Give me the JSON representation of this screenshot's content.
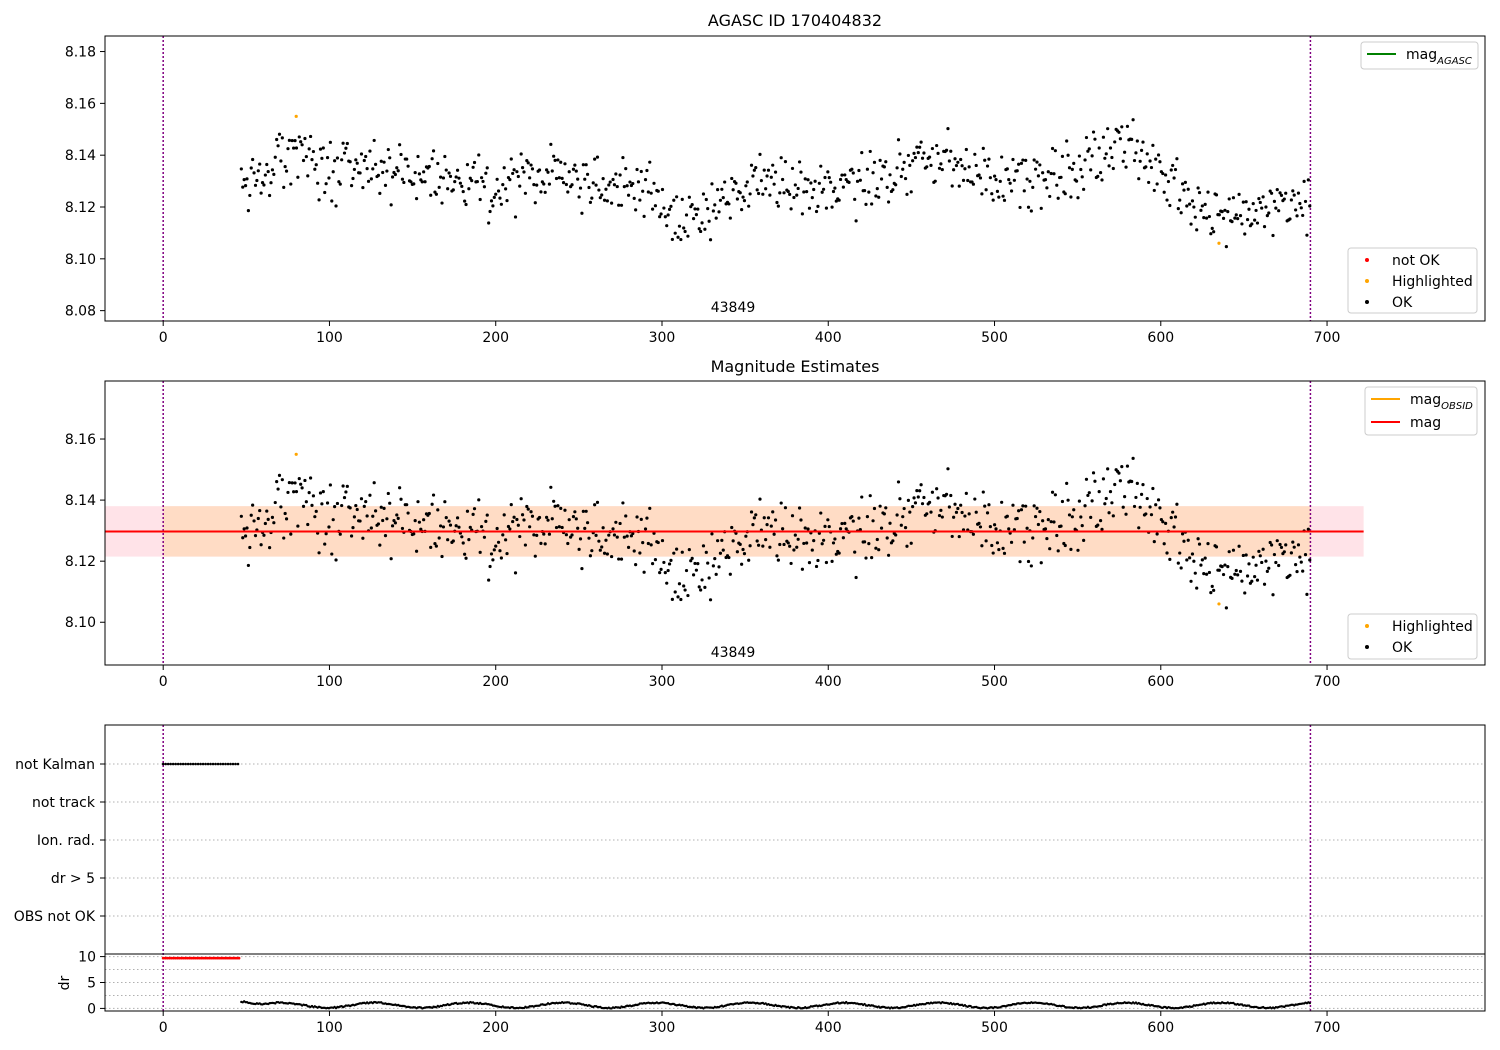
{
  "colors": {
    "ok": "#000000",
    "highlighted": "#ffa500",
    "not_ok": "#ff0000",
    "mag_agasc": "#008000",
    "mag_obsid": "#ffa500",
    "mag": "#ff0000",
    "obs_band": "#ffdab9",
    "total_band": "#ffc0cb",
    "obs_boundary": "#800080",
    "grid": "#b0b0b0"
  },
  "chart_data": [
    {
      "type": "scatter",
      "title": "AGASC ID 170404832",
      "xlim": [
        -35,
        795
      ],
      "ylim": [
        8.076,
        8.186
      ],
      "xticks": [
        "0",
        "100",
        "200",
        "300",
        "400",
        "500",
        "600",
        "700"
      ],
      "yticks": [
        "8.08",
        "8.10",
        "8.12",
        "8.14",
        "8.16",
        "8.18"
      ],
      "obsid_label": "43849",
      "obs_boundaries": [
        0,
        690
      ],
      "ok_series": {
        "x_start": 47,
        "x_end": 690,
        "mean": 8.1296,
        "profile": [
          [
            47,
            8.126
          ],
          [
            80,
            8.14
          ],
          [
            100,
            8.134
          ],
          [
            150,
            8.133
          ],
          [
            200,
            8.128
          ],
          [
            230,
            8.133
          ],
          [
            260,
            8.128
          ],
          [
            290,
            8.127
          ],
          [
            310,
            8.114
          ],
          [
            330,
            8.12
          ],
          [
            360,
            8.131
          ],
          [
            390,
            8.124
          ],
          [
            420,
            8.13
          ],
          [
            460,
            8.139
          ],
          [
            490,
            8.133
          ],
          [
            510,
            8.13
          ],
          [
            540,
            8.134
          ],
          [
            570,
            8.142
          ],
          [
            590,
            8.141
          ],
          [
            610,
            8.125
          ],
          [
            630,
            8.116
          ],
          [
            650,
            8.116
          ],
          [
            670,
            8.122
          ],
          [
            690,
            8.12
          ]
        ]
      },
      "highlighted_points": [
        {
          "x": 80,
          "y": 8.155
        },
        {
          "x": 635,
          "y": 8.106
        }
      ],
      "not_ok_points": [],
      "legend_lines": [
        {
          "label": "mag",
          "sub": "AGASC",
          "color": "#008000"
        }
      ],
      "legend_markers": [
        {
          "label": "not OK",
          "color": "#ff0000"
        },
        {
          "label": "Highlighted",
          "color": "#ffa500"
        },
        {
          "label": "OK",
          "color": "#000000"
        }
      ]
    },
    {
      "type": "scatter",
      "title": "Magnitude Estimates",
      "xlim": [
        -35,
        795
      ],
      "ylim": [
        8.086,
        8.179
      ],
      "xticks": [
        "0",
        "100",
        "200",
        "300",
        "400",
        "500",
        "600",
        "700"
      ],
      "yticks": [
        "8.10",
        "8.12",
        "8.14",
        "8.16"
      ],
      "obsid_label": "43849",
      "obs_boundaries": [
        0,
        690
      ],
      "mag": 8.1297,
      "mag_obsid": 8.1297,
      "band_low": 8.1215,
      "band_high": 8.138,
      "band_x_end": 722,
      "legend_lines": [
        {
          "label": "mag",
          "sub": "OBSID",
          "color": "#ffa500"
        },
        {
          "label": "mag",
          "sub": "",
          "color": "#ff0000"
        }
      ],
      "legend_markers": [
        {
          "label": "Highlighted",
          "color": "#ffa500"
        },
        {
          "label": "OK",
          "color": "#000000"
        }
      ]
    },
    {
      "type": "scatter",
      "title": "",
      "xlim": [
        -35,
        795
      ],
      "flag_labels": [
        "not Kalman",
        "not track",
        "Ion. rad.",
        "dr > 5",
        "OBS not OK"
      ],
      "not_kalman_range": [
        0,
        46
      ],
      "dr_ylabel": "dr",
      "dr_yticks": [
        "0",
        "5",
        "10"
      ],
      "dr_ylim": [
        -0.5,
        10.5
      ],
      "dr_high_range": [
        0,
        46
      ],
      "dr_high_value": 9.7,
      "dr_low_range": [
        47,
        690
      ],
      "dr_low_mean": 0.6,
      "xticks": [
        "0",
        "100",
        "200",
        "300",
        "400",
        "500",
        "600",
        "700"
      ]
    }
  ]
}
